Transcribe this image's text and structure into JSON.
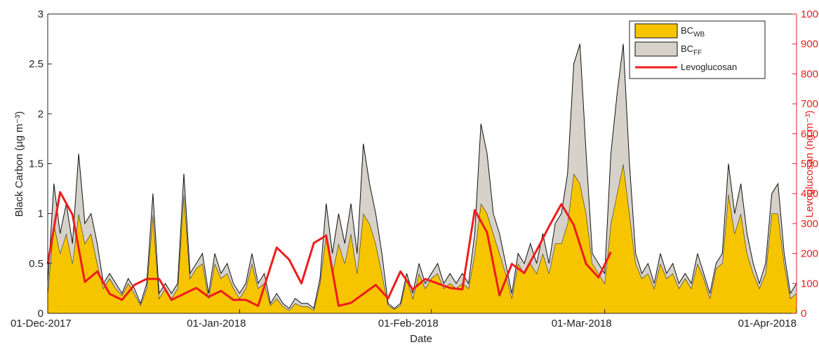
{
  "chart_data": {
    "type": "stacked_area_line",
    "xlabel": "Date",
    "ylabel": "Black Carbon (µg m⁻³)",
    "y2label": "Levoglucosan (ng m⁻³)",
    "xlim": [
      "2017-12-01",
      "2018-04-01"
    ],
    "xticks": [
      {
        "value": "2017-12-01",
        "label": "01-Dec-2017"
      },
      {
        "value": "2018-01-01",
        "label": "01-Jan-2018"
      },
      {
        "value": "2018-02-01",
        "label": "01-Feb-2018"
      },
      {
        "value": "2018-03-01",
        "label": "01-Mar-2018"
      },
      {
        "value": "2018-04-01",
        "label": "01-Apr-2018"
      }
    ],
    "ylim": [
      0,
      3
    ],
    "yticks": [
      0,
      0.5,
      1,
      1.5,
      2,
      2.5,
      3
    ],
    "y2lim": [
      0,
      1000
    ],
    "y2ticks": [
      0,
      100,
      200,
      300,
      400,
      500,
      600,
      700,
      800,
      900,
      1000
    ],
    "legend": "upper right",
    "x": [
      "2017-12-01",
      "2017-12-02",
      "2017-12-03",
      "2017-12-04",
      "2017-12-05",
      "2017-12-06",
      "2017-12-07",
      "2017-12-08",
      "2017-12-09",
      "2017-12-10",
      "2017-12-11",
      "2017-12-12",
      "2017-12-13",
      "2017-12-14",
      "2017-12-15",
      "2017-12-16",
      "2017-12-17",
      "2017-12-18",
      "2017-12-19",
      "2017-12-20",
      "2017-12-21",
      "2017-12-22",
      "2017-12-23",
      "2017-12-24",
      "2017-12-25",
      "2017-12-26",
      "2017-12-27",
      "2017-12-28",
      "2017-12-29",
      "2017-12-30",
      "2017-12-31",
      "2018-01-01",
      "2018-01-02",
      "2018-01-03",
      "2018-01-04",
      "2018-01-05",
      "2018-01-06",
      "2018-01-07",
      "2018-01-08",
      "2018-01-09",
      "2018-01-10",
      "2018-01-11",
      "2018-01-12",
      "2018-01-13",
      "2018-01-14",
      "2018-01-15",
      "2018-01-16",
      "2018-01-17",
      "2018-01-18",
      "2018-01-19",
      "2018-01-20",
      "2018-01-21",
      "2018-01-22",
      "2018-01-23",
      "2018-01-24",
      "2018-01-25",
      "2018-01-26",
      "2018-01-27",
      "2018-01-28",
      "2018-01-29",
      "2018-01-30",
      "2018-01-31",
      "2018-02-01",
      "2018-02-02",
      "2018-02-03",
      "2018-02-04",
      "2018-02-05",
      "2018-02-06",
      "2018-02-07",
      "2018-02-08",
      "2018-02-09",
      "2018-02-10",
      "2018-02-11",
      "2018-02-12",
      "2018-02-13",
      "2018-02-14",
      "2018-02-15",
      "2018-02-16",
      "2018-02-17",
      "2018-02-18",
      "2018-02-19",
      "2018-02-20",
      "2018-02-21",
      "2018-02-22",
      "2018-02-23",
      "2018-02-24",
      "2018-02-25",
      "2018-02-26",
      "2018-02-27",
      "2018-02-28",
      "2018-03-01",
      "2018-03-02",
      "2018-03-03",
      "2018-03-04",
      "2018-03-05",
      "2018-03-06",
      "2018-03-07",
      "2018-03-08",
      "2018-03-09",
      "2018-03-10",
      "2018-03-11",
      "2018-03-12",
      "2018-03-13",
      "2018-03-14",
      "2018-03-15",
      "2018-03-16",
      "2018-03-17",
      "2018-03-18",
      "2018-03-19",
      "2018-03-20",
      "2018-03-21",
      "2018-03-22",
      "2018-03-23",
      "2018-03-24",
      "2018-03-25",
      "2018-03-26",
      "2018-03-27",
      "2018-03-28",
      "2018-03-29",
      "2018-03-30",
      "2018-03-31",
      "2018-04-01"
    ],
    "series": [
      {
        "name": "BC",
        "subscript": "WB",
        "color": "#f7c500",
        "stack": "bc",
        "values": [
          0.2,
          0.9,
          0.6,
          0.8,
          0.5,
          1.0,
          0.7,
          0.8,
          0.5,
          0.25,
          0.35,
          0.25,
          0.18,
          0.3,
          0.2,
          0.08,
          0.25,
          1.0,
          0.15,
          0.25,
          0.15,
          0.25,
          1.2,
          0.35,
          0.45,
          0.5,
          0.15,
          0.5,
          0.35,
          0.4,
          0.25,
          0.15,
          0.25,
          0.5,
          0.25,
          0.3,
          0.08,
          0.15,
          0.07,
          0.03,
          0.1,
          0.07,
          0.07,
          0.03,
          0.3,
          0.8,
          0.4,
          0.7,
          0.5,
          0.8,
          0.4,
          1.0,
          0.9,
          0.7,
          0.4,
          0.08,
          0.04,
          0.08,
          0.35,
          0.15,
          0.4,
          0.25,
          0.35,
          0.4,
          0.25,
          0.3,
          0.25,
          0.3,
          0.25,
          0.6,
          1.1,
          1.0,
          0.8,
          0.6,
          0.4,
          0.15,
          0.5,
          0.4,
          0.5,
          0.4,
          0.6,
          0.4,
          0.7,
          0.7,
          0.9,
          1.4,
          1.3,
          1.0,
          0.5,
          0.4,
          0.3,
          0.9,
          1.2,
          1.5,
          1.0,
          0.5,
          0.35,
          0.4,
          0.25,
          0.5,
          0.35,
          0.4,
          0.25,
          0.35,
          0.25,
          0.5,
          0.35,
          0.15,
          0.45,
          0.5,
          1.2,
          0.8,
          1.0,
          0.6,
          0.4,
          0.25,
          0.4,
          1.0,
          1.0,
          0.5,
          0.15,
          0.2
        ]
      },
      {
        "name": "BC",
        "subscript": "FF",
        "color": "#d6d2c9",
        "stack": "bc",
        "values": [
          0.1,
          0.4,
          0.2,
          0.3,
          0.2,
          0.6,
          0.2,
          0.2,
          0.2,
          0.05,
          0.05,
          0.05,
          0.02,
          0.05,
          0.05,
          0.02,
          0.05,
          0.2,
          0.05,
          0.05,
          0.05,
          0.05,
          0.2,
          0.05,
          0.05,
          0.1,
          0.05,
          0.1,
          0.05,
          0.1,
          0.05,
          0.05,
          0.05,
          0.1,
          0.05,
          0.1,
          0.02,
          0.05,
          0.03,
          0.02,
          0.05,
          0.03,
          0.03,
          0.02,
          0.05,
          0.3,
          0.2,
          0.3,
          0.2,
          0.3,
          0.2,
          0.7,
          0.4,
          0.3,
          0.2,
          0.02,
          0.01,
          0.02,
          0.05,
          0.05,
          0.1,
          0.05,
          0.05,
          0.1,
          0.05,
          0.1,
          0.05,
          0.1,
          0.05,
          0.2,
          0.8,
          0.6,
          0.2,
          0.2,
          0.1,
          0.05,
          0.1,
          0.1,
          0.2,
          0.1,
          0.2,
          0.1,
          0.2,
          0.3,
          0.5,
          1.1,
          1.4,
          0.6,
          0.1,
          0.1,
          0.1,
          0.7,
          1.0,
          1.2,
          0.5,
          0.1,
          0.05,
          0.1,
          0.05,
          0.1,
          0.05,
          0.1,
          0.05,
          0.05,
          0.05,
          0.1,
          0.05,
          0.05,
          0.05,
          0.1,
          0.3,
          0.2,
          0.3,
          0.2,
          0.1,
          0.05,
          0.1,
          0.2,
          0.3,
          0.1,
          0.05,
          0.1
        ]
      },
      {
        "name": "Levoglucosan",
        "color": "#ee1c1c",
        "axis": "y2",
        "x": [
          "2017-12-01",
          "2017-12-03",
          "2017-12-05",
          "2017-12-07",
          "2017-12-09",
          "2017-12-11",
          "2017-12-13",
          "2017-12-15",
          "2017-12-17",
          "2017-12-19",
          "2017-12-21",
          "2017-12-23",
          "2017-12-25",
          "2017-12-27",
          "2017-12-29",
          "2017-12-31",
          "2018-01-02",
          "2018-01-04",
          "2018-01-07",
          "2018-01-09",
          "2018-01-11",
          "2018-01-13",
          "2018-01-15",
          "2018-01-17",
          "2018-01-19",
          "2018-01-21",
          "2018-01-23",
          "2018-01-25",
          "2018-01-27",
          "2018-01-29",
          "2018-01-31",
          "2018-02-02",
          "2018-02-04",
          "2018-02-06",
          "2018-02-08",
          "2018-02-10",
          "2018-02-12",
          "2018-02-14",
          "2018-02-16",
          "2018-02-18",
          "2018-02-20",
          "2018-02-22",
          "2018-02-24",
          "2018-02-26",
          "2018-02-28",
          "2018-03-02"
        ],
        "values": [
          165,
          405,
          330,
          105,
          140,
          65,
          45,
          95,
          115,
          115,
          45,
          65,
          85,
          55,
          75,
          45,
          45,
          25,
          220,
          180,
          100,
          235,
          260,
          25,
          35,
          65,
          95,
          50,
          140,
          80,
          115,
          100,
          85,
          80,
          345,
          270,
          60,
          165,
          135,
          210,
          290,
          365,
          295,
          165,
          120,
          205
        ]
      }
    ]
  }
}
